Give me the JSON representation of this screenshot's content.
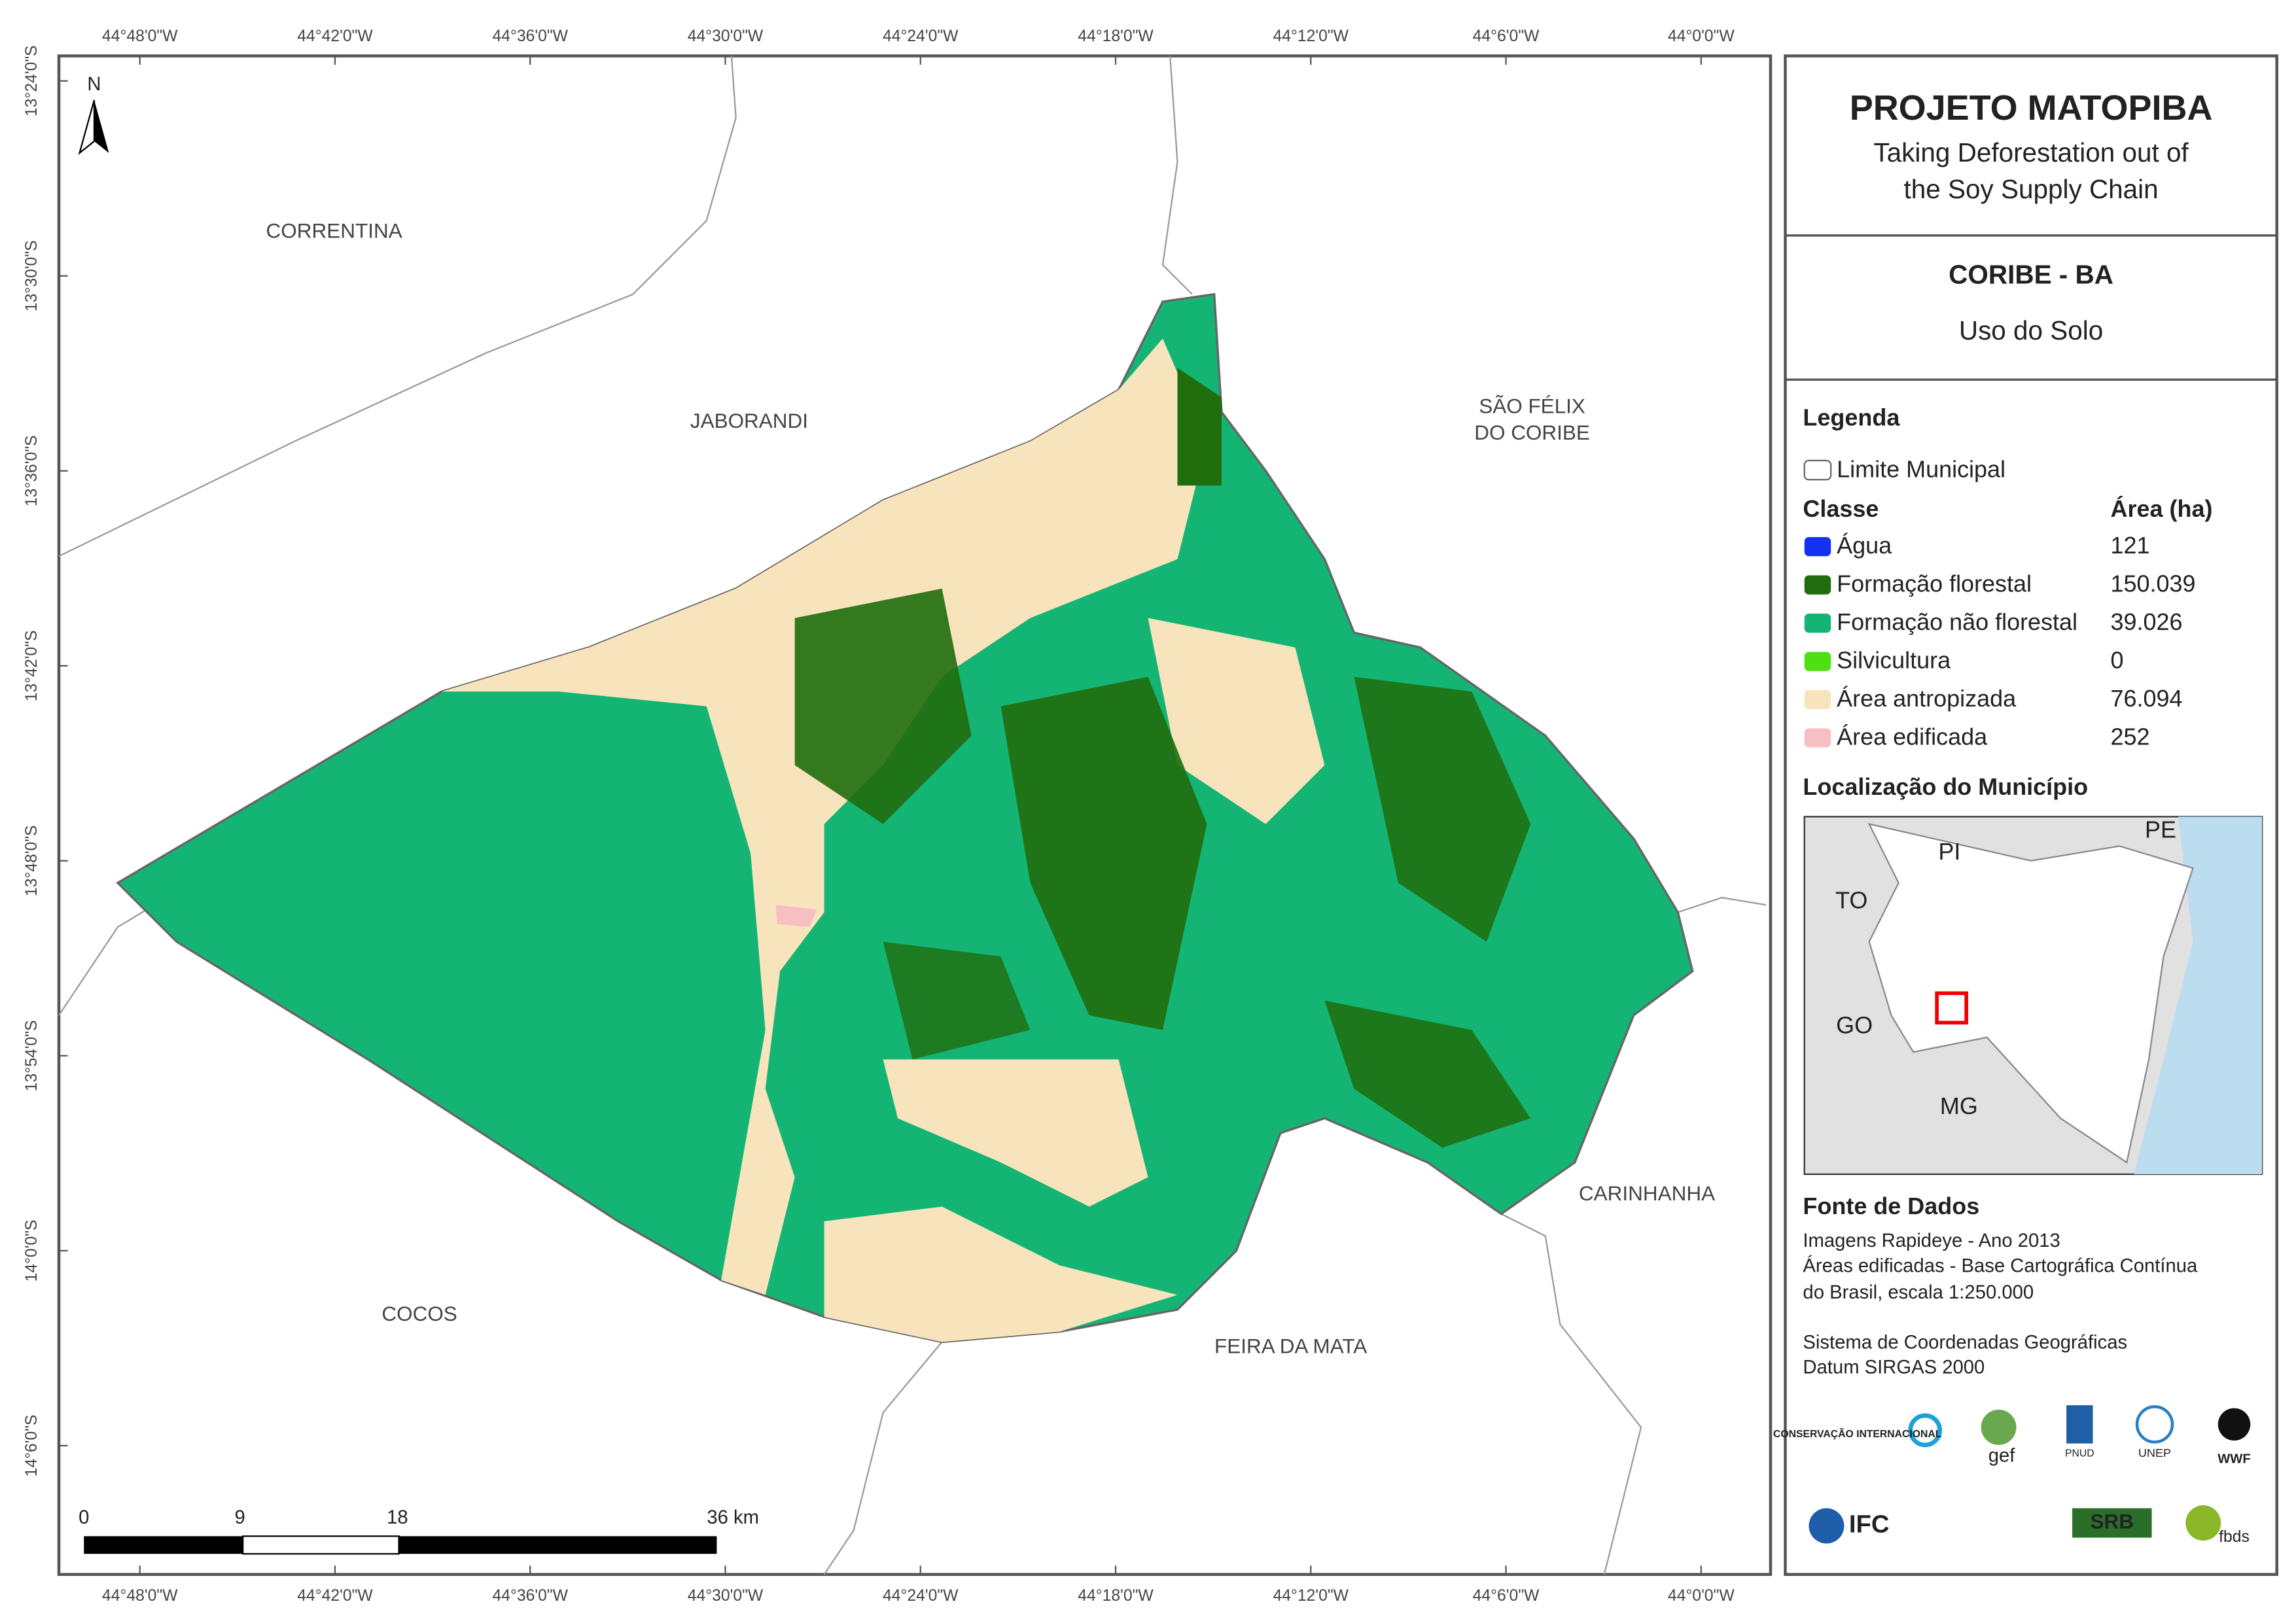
{
  "map": {
    "north": "N",
    "lon_labels": [
      "44°48'0\"W",
      "44°42'0\"W",
      "44°36'0\"W",
      "44°30'0\"W",
      "44°24'0\"W",
      "44°18'0\"W",
      "44°12'0\"W",
      "44°6'0\"W",
      "44°0'0\"W"
    ],
    "lat_labels": [
      "13°24'0\"S",
      "13°30'0\"S",
      "13°36'0\"S",
      "13°42'0\"S",
      "13°48'0\"S",
      "13°54'0\"S",
      "14°0'0\"S",
      "14°6'0\"S"
    ],
    "places": [
      "CORRENTINA",
      "JABORANDI",
      "SÃO FÉLIX",
      "DO CORIBE",
      "CARINHANHA",
      "COCOS",
      "FEIRA DA MATA"
    ],
    "scale": [
      "0",
      "9",
      "18",
      "36 km"
    ]
  },
  "panel": {
    "title": "PROJETO MATOPIBA",
    "subtitle": [
      "Taking Deforestation out of",
      "the Soy Supply Chain"
    ],
    "municipality": "CORIBE - BA",
    "theme": "Uso do Solo",
    "legend": {
      "title": "Legenda",
      "boundary": "Limite Municipal",
      "class_header": "Classe",
      "area_header": "Área (ha)",
      "rows": [
        [
          "Água",
          "121"
        ],
        [
          "Formação florestal",
          "150.039"
        ],
        [
          "Formação não florestal",
          "39.026"
        ],
        [
          "Silvicultura",
          "0"
        ],
        [
          "Área antropizada",
          "76.094"
        ],
        [
          "Área edificada",
          "252"
        ]
      ]
    },
    "location": {
      "title": "Localização do Município",
      "states": [
        "PI",
        "PE",
        "TO",
        "GO",
        "MG"
      ]
    },
    "sources": {
      "title": "Fonte de Dados",
      "lines": [
        "Imagens Rapideye - Ano 2013",
        "Áreas edificadas - Base Cartográfica Contínua",
        "do Brasil, escala 1:250.000",
        "Sistema de Coordenadas Geográficas",
        "Datum SIRGAS 2000"
      ]
    },
    "logos": [
      "CONSERVAÇÃO INTERNACIONAL",
      "gef",
      "PNUD",
      "UNEP",
      "WWF",
      "IFC",
      "SRB",
      "fbds"
    ]
  }
}
